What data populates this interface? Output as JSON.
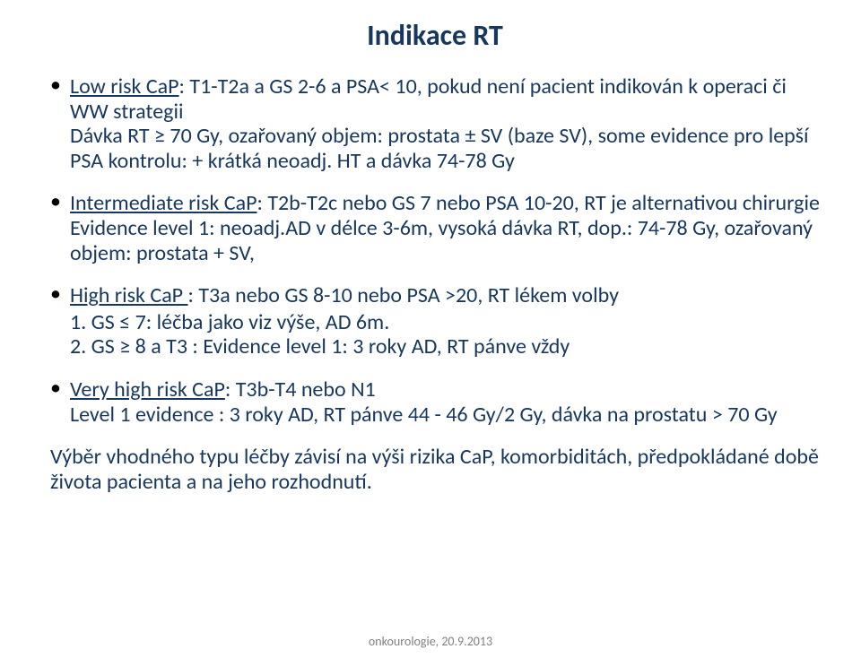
{
  "colors": {
    "title": "#17375e",
    "body": "#17375e",
    "bullet": "#000000",
    "footer": "#808080",
    "background": "#ffffff"
  },
  "typography": {
    "title_size": 32,
    "body_size": 24,
    "footer_size": 14,
    "title_weight": "bold"
  },
  "title": "Indikace  RT",
  "bullets": [
    {
      "lead": "Low risk CaP",
      "rest": ": T1-T2a a GS 2-6 a PSA< 10, pokud není pacient indikován k operaci či WW strategii",
      "cont": "Dávka RT ≥ 70 Gy, ozařovaný objem:  prostata ± SV (baze SV), some evidence pro lepší PSA kontrolu:  +  krátká neoadj. HT a dávka 74-78 Gy"
    },
    {
      "lead": "Intermediate risk CaP",
      "rest": ": T2b-T2c nebo GS 7 nebo PSA 10-20, RT je alternativou chirurgie",
      "cont": "Evidence level 1: neoadj.AD v délce 3-6m, vysoká dávka RT, dop.: 74-78 Gy, ozařovaný objem:  prostata + SV,"
    },
    {
      "lead": "High risk CaP ",
      "rest": ": T3a nebo GS 8-10 nebo PSA >20,  RT lékem volby",
      "sub": [
        "1. GS ≤ 7:  léčba jako viz výše, AD 6m.",
        "2. GS ≥ 8 a T3 : Evidence level 1: 3 roky AD, RT pánve vždy"
      ]
    },
    {
      "lead": "Very high risk CaP",
      "rest": ": T3b-T4 nebo N1",
      "cont": "Level 1 evidence : 3 roky AD, RT pánve 44 - 46 Gy/2 Gy, dávka na prostatu > 70 Gy"
    }
  ],
  "closing": "Výběr vhodného typu léčby závisí na výši rizika CaP, komorbiditách, předpokládané době života pacienta  a na jeho rozhodnutí.",
  "footer": "onkourologie, 20.9.2013"
}
